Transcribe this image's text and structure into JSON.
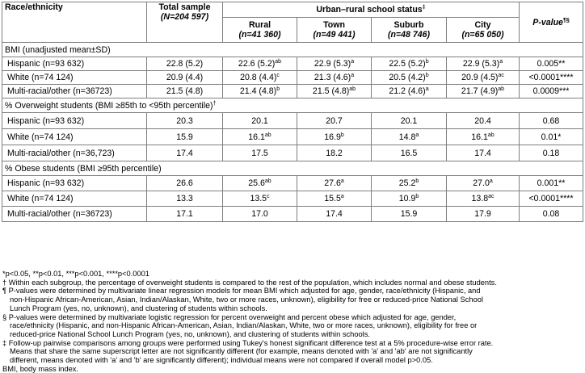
{
  "header": {
    "race": "Race/ethnicity",
    "total_title": "Total sample",
    "total_n": "(N=204 597)",
    "status": "Urban–rural school status",
    "status_mark": "‡",
    "pvalue": "P-value",
    "pvalue_mark": "¶§",
    "cols": [
      {
        "name": "Rural",
        "n": "(n=41 360)"
      },
      {
        "name": "Town",
        "n": "(n=49 441)"
      },
      {
        "name": "Suburb",
        "n": "(n=48 746)"
      },
      {
        "name": "City",
        "n": "(n=65 050)"
      }
    ]
  },
  "sections": [
    {
      "title": "BMI (unadjusted mean±SD)",
      "rows": [
        {
          "label": "Hispanic (n=93 632)",
          "total": "22.8 (5.2)",
          "cells": [
            [
              "22.6 (5.2)",
              "ab"
            ],
            [
              "22.9 (5.3)",
              "a"
            ],
            [
              "22.5 (5.2)",
              "b"
            ],
            [
              "22.9 (5.3)",
              "a"
            ]
          ],
          "p": "0.005**"
        },
        {
          "label": "White (n=74 124)",
          "total": "20.9 (4.4)",
          "cells": [
            [
              "20.8 (4.4)",
              "c"
            ],
            [
              "21.3 (4.6)",
              "a"
            ],
            [
              "20.5 (4.2)",
              "b"
            ],
            [
              "20.9 (4.5)",
              "ac"
            ]
          ],
          "p": "<0.0001****"
        },
        {
          "label": "Multi-racial/other (n=36723)",
          "total": "21.5 (4.8)",
          "cells": [
            [
              "21.4 (4.8)",
              "b"
            ],
            [
              "21.5 (4.8)",
              "ab"
            ],
            [
              "21.2 (4.6)",
              "a"
            ],
            [
              "21.7 (4.9)",
              "ab"
            ]
          ],
          "p": "0.0009***"
        }
      ]
    },
    {
      "title": "% Overweight students (BMI ≥85th to <95th percentile)",
      "title_mark": "†",
      "rows": [
        {
          "label": "Hispanic (n=93 632)",
          "total": "20.3",
          "cells": [
            [
              "20.1",
              ""
            ],
            [
              "20.7",
              ""
            ],
            [
              "20.1",
              ""
            ],
            [
              "20.4",
              ""
            ]
          ],
          "p": "0.68"
        },
        {
          "label": "White (n=74 124)",
          "total": "15.9",
          "cells": [
            [
              "16.1",
              "ab"
            ],
            [
              "16.9",
              "b"
            ],
            [
              "14.8",
              "a"
            ],
            [
              "16.1",
              "ab"
            ]
          ],
          "p": "0.01*"
        },
        {
          "label": "Multi-racial/other (n=36,723)",
          "total": "17.4",
          "cells": [
            [
              "17.5",
              ""
            ],
            [
              "18.2",
              ""
            ],
            [
              "16.5",
              ""
            ],
            [
              "17.4",
              ""
            ]
          ],
          "p": "0.18"
        }
      ]
    },
    {
      "title": "% Obese students (BMI ≥95th percentile)",
      "title_mark": "",
      "rows": [
        {
          "label": "Hispanic (n=93 632)",
          "total": "26.6",
          "cells": [
            [
              "25.6",
              "ab"
            ],
            [
              "27.6",
              "a"
            ],
            [
              "25.2",
              "b"
            ],
            [
              "27.0",
              "a"
            ]
          ],
          "p": "0.001**"
        },
        {
          "label": "White (n=74 124)",
          "total": "13.3",
          "cells": [
            [
              "13.5",
              "c"
            ],
            [
              "15.5",
              "a"
            ],
            [
              "10.9",
              "b"
            ],
            [
              "13.8",
              "ac"
            ]
          ],
          "p": "<0.0001****"
        },
        {
          "label": "Multi-racial/other (n=36723)",
          "total": "17.1",
          "cells": [
            [
              "17.0",
              ""
            ],
            [
              "17.4",
              ""
            ],
            [
              "15.9",
              ""
            ],
            [
              "17.9",
              ""
            ]
          ],
          "p": "0.08"
        }
      ]
    }
  ],
  "notes": [
    {
      "text": "*p<0.05, **p<0.01, ***p<0.001, ****p<0.0001",
      "indent": false
    },
    {
      "text": "† Within each subgroup, the percentage of overweight students is compared to the rest of the population, which includes normal and obese students.",
      "indent": false
    },
    {
      "text": "¶ P-values were determined by multivariate linear regression models for mean BMI which adjusted for age, gender, race/ethnicity (Hispanic, and",
      "indent": false
    },
    {
      "text": "non-Hispanic African-American, Asian, Indian/Alaskan, White, two or more races, unknown), eligibility for free or reduced-price National School",
      "indent": true
    },
    {
      "text": "Lunch Program (yes, no, unknown), and clustering of students within schools.",
      "indent": true
    },
    {
      "text": "§ P-values were determined by multivariate logistic regression for percent overweight and percent obese which adjusted for age, gender,",
      "indent": false
    },
    {
      "text": "race/ethnicity (Hispanic, and non-Hispanic African-American, Asian, Indian/Alaskan, White, two or more races, unknown), eligibility for free or",
      "indent": true
    },
    {
      "text": "reduced-price National School Lunch Program (yes, no, unknown), and clustering of students within schools.",
      "indent": true
    },
    {
      "text": "‡ Follow-up pairwise comparisons among groups were performed using Tukey's honest significant difference test at a 5% procedure-wise error rate.",
      "indent": false
    },
    {
      "text": "Means that share the same superscript letter are not significantly different (for example, means denoted with 'a' and 'ab' are not significantly",
      "indent": true
    },
    {
      "text": "different, means denoted with 'a' and 'b' are significantly different); individual means were not compared if overall model p>0.05.",
      "indent": true
    },
    {
      "text": "BMI, body mass index.",
      "indent": false
    }
  ]
}
